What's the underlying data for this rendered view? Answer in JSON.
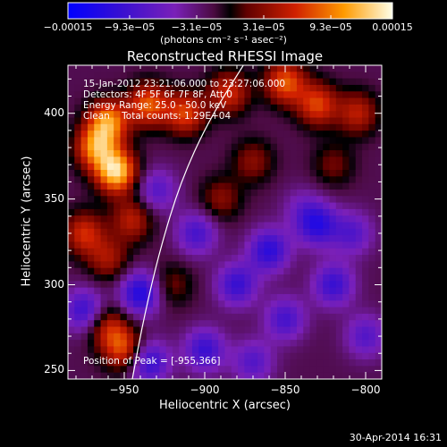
{
  "chart_data": {
    "type": "heatmap",
    "title": "Reconstructed RHESSI Image",
    "xlabel": "Heliocentric X (arcsec)",
    "ylabel": "Heliocentric Y (arcsec)",
    "xlim": [
      -985,
      -790
    ],
    "ylim": [
      245,
      428
    ],
    "x_ticks": [
      -950,
      -900,
      -850,
      -800
    ],
    "x_tick_labels": [
      "−950",
      "−900",
      "−850",
      "−800"
    ],
    "y_ticks": [
      250,
      300,
      350,
      400
    ],
    "y_tick_labels": [
      "250",
      "300",
      "350",
      "400"
    ],
    "colorbar": {
      "range": [
        -0.00015,
        0.00015
      ],
      "ticks": [
        -0.00015,
        -9.3e-05,
        -3.1e-05,
        3.1e-05,
        9.3e-05,
        0.00015
      ],
      "tick_labels": [
        "−0.00015",
        "−9.3e−05",
        "−3.1e−05",
        "3.1e−05",
        "9.3e−05",
        "0.00015"
      ],
      "unit_label": "(photons cm⁻² s⁻¹ asec⁻²)"
    },
    "info_lines": [
      "15-Jan-2012 23:21:06.000 to 23:27:06.000",
      "Detectors: 4F 5F 6F 7F 8F, Att 0",
      "Energy Range: 25.0 - 50.0 keV",
      "Clean    Total counts: 1.29E+04"
    ],
    "peak_label": "Position of Peak = [-955,366]",
    "peak": [
      -955,
      366
    ],
    "limb_curve": [
      [
        -945,
        245
      ],
      [
        -938,
        280
      ],
      [
        -928,
        320
      ],
      [
        -915,
        360
      ],
      [
        -898,
        395
      ],
      [
        -876,
        428
      ]
    ],
    "sources": [
      {
        "x": -955,
        "y": 366,
        "value": 0.00015
      },
      {
        "x": -968,
        "y": 380,
        "value": 0.00011
      },
      {
        "x": -960,
        "y": 395,
        "value": 0.00012
      },
      {
        "x": -935,
        "y": 405,
        "value": 0.0001
      },
      {
        "x": -912,
        "y": 400,
        "value": 9e-05
      },
      {
        "x": -885,
        "y": 412,
        "value": 8e-05
      },
      {
        "x": -850,
        "y": 418,
        "value": 0.0001
      },
      {
        "x": -830,
        "y": 405,
        "value": 9e-05
      },
      {
        "x": -805,
        "y": 400,
        "value": 7e-05
      },
      {
        "x": -975,
        "y": 330,
        "value": 8e-05
      },
      {
        "x": -960,
        "y": 315,
        "value": 6e-05
      },
      {
        "x": -945,
        "y": 338,
        "value": 7e-05
      },
      {
        "x": -890,
        "y": 350,
        "value": 5e-05
      },
      {
        "x": -950,
        "y": 262,
        "value": 9e-05
      },
      {
        "x": -960,
        "y": 275,
        "value": 7e-05
      },
      {
        "x": -920,
        "y": 300,
        "value": 4e-05
      },
      {
        "x": -870,
        "y": 372,
        "value": 5e-05
      },
      {
        "x": -840,
        "y": 345,
        "value": -3e-05
      },
      {
        "x": -820,
        "y": 370,
        "value": 4e-05
      },
      {
        "x": -930,
        "y": 355,
        "value": -6e-05
      },
      {
        "x": -905,
        "y": 330,
        "value": -7e-05
      },
      {
        "x": -880,
        "y": 300,
        "value": -8e-05
      },
      {
        "x": -850,
        "y": 280,
        "value": -7e-05
      },
      {
        "x": -820,
        "y": 300,
        "value": -8e-05
      },
      {
        "x": -800,
        "y": 270,
        "value": -6e-05
      },
      {
        "x": -940,
        "y": 295,
        "value": -0.0001
      },
      {
        "x": -935,
        "y": 255,
        "value": -9e-05
      },
      {
        "x": -975,
        "y": 285,
        "value": -8e-05
      },
      {
        "x": -860,
        "y": 320,
        "value": -9e-05
      },
      {
        "x": -830,
        "y": 335,
        "value": -9e-05
      },
      {
        "x": -900,
        "y": 262,
        "value": -8e-05
      },
      {
        "x": -870,
        "y": 255,
        "value": -6e-05
      },
      {
        "x": -808,
        "y": 330,
        "value": -6e-05
      }
    ]
  },
  "footer": {
    "date": "30-Apr-2014 16:31"
  }
}
